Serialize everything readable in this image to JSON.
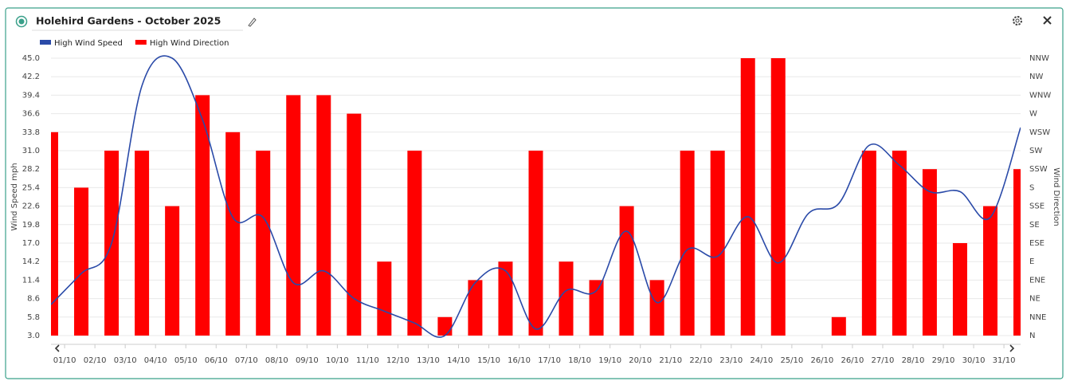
{
  "header": {
    "title": "Holehird Gardens - October 2025"
  },
  "chart_data": {
    "type": "combo",
    "y_label": "Wind Speed mph",
    "y2_label": "Wind Direction",
    "x": [
      0.55,
      1.55,
      2.55,
      3.55,
      4.55,
      5.55,
      6.55,
      7.55,
      8.55,
      9.55,
      10.55,
      11.55,
      12.55,
      13.55,
      14.55,
      15.55,
      16.55,
      17.55,
      18.55,
      19.55,
      20.55,
      21.55,
      22.55,
      23.55,
      24.55,
      25.55,
      26.55,
      27.55,
      28.55,
      29.55,
      30.55,
      31.55,
      32.55
    ],
    "xlim": [
      0.55,
      32.55
    ],
    "xticks": [
      {
        "value": 1,
        "label": "01/10"
      },
      {
        "value": 2,
        "label": "02/10"
      },
      {
        "value": 3,
        "label": "03/10"
      },
      {
        "value": 4,
        "label": "04/10"
      },
      {
        "value": 5,
        "label": "05/10"
      },
      {
        "value": 6,
        "label": "06/10"
      },
      {
        "value": 7,
        "label": "07/10"
      },
      {
        "value": 8,
        "label": "08/10"
      },
      {
        "value": 9,
        "label": "09/10"
      },
      {
        "value": 10,
        "label": "10/10"
      },
      {
        "value": 11,
        "label": "11/10"
      },
      {
        "value": 12,
        "label": "12/10"
      },
      {
        "value": 13,
        "label": "13/10"
      },
      {
        "value": 14,
        "label": "14/10"
      },
      {
        "value": 15,
        "label": "15/10"
      },
      {
        "value": 16,
        "label": "16/10"
      },
      {
        "value": 17,
        "label": "17/10"
      },
      {
        "value": 18,
        "label": "18/10"
      },
      {
        "value": 19,
        "label": "19/10"
      },
      {
        "value": 20,
        "label": "20/10"
      },
      {
        "value": 21,
        "label": "21/10"
      },
      {
        "value": 22,
        "label": "22/10"
      },
      {
        "value": 23,
        "label": "23/10"
      },
      {
        "value": 24,
        "label": "24/10"
      },
      {
        "value": 25,
        "label": "25/10"
      },
      {
        "value": 26,
        "label": "26/10"
      },
      {
        "value": 27,
        "label": "26/10"
      },
      {
        "value": 28,
        "label": "27/10"
      },
      {
        "value": 29,
        "label": "28/10"
      },
      {
        "value": 30,
        "label": "29/10"
      },
      {
        "value": 31,
        "label": "30/10"
      },
      {
        "value": 32,
        "label": "31/10"
      }
    ],
    "ylim": [
      3,
      45
    ],
    "yticks": [
      {
        "value": 3,
        "label": "3.0"
      },
      5.8,
      8.6,
      11.4,
      14.2,
      {
        "value": 17,
        "label": "17.0"
      },
      19.8,
      22.6,
      25.4,
      28.2,
      {
        "value": 31,
        "label": "31.0"
      },
      33.8,
      36.6,
      39.4,
      42.2,
      {
        "value": 45,
        "label": "45.0"
      }
    ],
    "y2lim": [
      0,
      337.5
    ],
    "y2ticks": [
      {
        "value": 0,
        "label": "N"
      },
      {
        "value": 22.5,
        "label": "NNE"
      },
      {
        "value": 45,
        "label": "NE"
      },
      {
        "value": 67.5,
        "label": "ENE"
      },
      {
        "value": 90,
        "label": "E"
      },
      {
        "value": 112.5,
        "label": "ESE"
      },
      {
        "value": 135,
        "label": "SE"
      },
      {
        "value": 157.5,
        "label": "SSE"
      },
      {
        "value": 180,
        "label": "S"
      },
      {
        "value": 202.5,
        "label": "SSW"
      },
      {
        "value": 225,
        "label": "SW"
      },
      {
        "value": 247.5,
        "label": "WSW"
      },
      {
        "value": 270,
        "label": "W"
      },
      {
        "value": 292.5,
        "label": "WNW"
      },
      {
        "value": 315,
        "label": "NW"
      },
      {
        "value": 337.5,
        "label": "NNW"
      }
    ],
    "grid": true,
    "series": [
      {
        "name": "High Wind Speed",
        "type": "line",
        "color": "#2a4aa8",
        "values": [
          7.7,
          12.4,
          17.0,
          40.8,
          45.0,
          35.7,
          20.9,
          20.9,
          11.0,
          12.8,
          8.6,
          6.7,
          4.9,
          3.0,
          11.0,
          12.8,
          4.0,
          9.8,
          9.8,
          18.8,
          8.0,
          16.0,
          15.0,
          21.0,
          14.0,
          21.5,
          23.0,
          31.8,
          28.8,
          24.8,
          24.8,
          20.9,
          34.5
        ]
      },
      {
        "name": "High Wind Direction",
        "type": "bar",
        "axis": "y2",
        "color": "#ff0000",
        "values": [
          247.5,
          180,
          225,
          225,
          157.5,
          292.5,
          247.5,
          225,
          292.5,
          292.5,
          270,
          90,
          225,
          22.5,
          67.5,
          90,
          225,
          90,
          67.5,
          157.5,
          67.5,
          225,
          225,
          337.5,
          337.5,
          0,
          22.5,
          225,
          225,
          202.5,
          112.5,
          157.5,
          202.5
        ]
      }
    ]
  }
}
